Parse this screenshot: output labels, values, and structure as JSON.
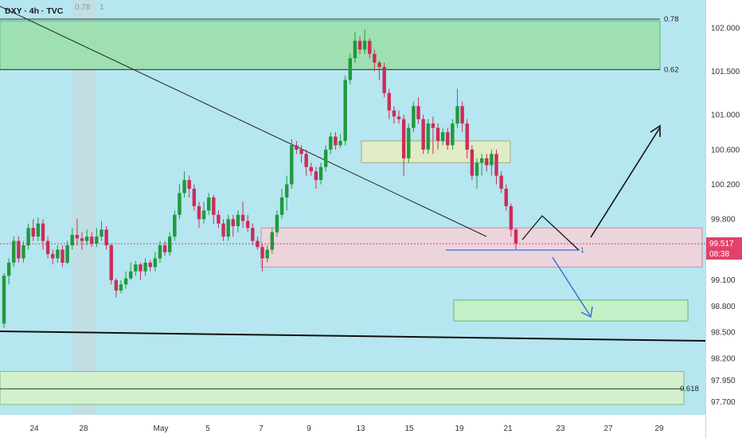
{
  "header": {
    "symbol_label": "DXY · 4h · TVC",
    "marker_value": "0.78",
    "marker_count": "1"
  },
  "price_badge": {
    "price": "99.517",
    "countdown": "08:38",
    "color": "#e0436a"
  },
  "colors": {
    "background": "#b6e6f0",
    "bull": "#1f9a3c",
    "bear": "#cc2c5a",
    "green_zone": "#9fe0b3",
    "pink_zone": "#f1d3db",
    "blue_arrow": "#2e6fd6"
  },
  "chart_data": {
    "type": "candlestick",
    "timeframe": "4h",
    "ylim": [
      97.55,
      102.32
    ],
    "y_ticks": [
      "102.000",
      "101.500",
      "101.000",
      "100.600",
      "100.200",
      "99.800",
      "99.100",
      "98.800",
      "98.500",
      "98.200",
      "97.950",
      "97.700"
    ],
    "x_tick_labels": [
      "24",
      "28",
      "May",
      "5",
      "7",
      "9",
      "13",
      "15",
      "19",
      "21",
      "23",
      "27",
      "29"
    ],
    "candles": [
      [
        98.6,
        99.15,
        99.18,
        98.55
      ],
      [
        99.15,
        99.3,
        99.35,
        99.05
      ],
      [
        99.3,
        99.55,
        99.6,
        99.25
      ],
      [
        99.55,
        99.35,
        99.6,
        99.3
      ],
      [
        99.35,
        99.5,
        99.55,
        99.3
      ],
      [
        99.5,
        99.7,
        99.75,
        99.45
      ],
      [
        99.7,
        99.6,
        99.8,
        99.55
      ],
      [
        99.6,
        99.75,
        99.82,
        99.55
      ],
      [
        99.75,
        99.55,
        99.8,
        99.45
      ],
      [
        99.55,
        99.4,
        99.6,
        99.35
      ],
      [
        99.4,
        99.35,
        99.45,
        99.28
      ],
      [
        99.35,
        99.45,
        99.5,
        99.3
      ],
      [
        99.45,
        99.3,
        99.5,
        99.25
      ],
      [
        99.3,
        99.5,
        99.55,
        99.28
      ],
      [
        99.5,
        99.62,
        99.7,
        99.45
      ],
      [
        99.62,
        99.58,
        99.8,
        99.5
      ],
      [
        99.58,
        99.55,
        99.65,
        99.45
      ],
      [
        99.55,
        99.6,
        99.68,
        99.5
      ],
      [
        99.6,
        99.52,
        99.65,
        99.48
      ],
      [
        99.52,
        99.6,
        99.7,
        99.48
      ],
      [
        99.6,
        99.68,
        99.78,
        99.55
      ],
      [
        99.68,
        99.5,
        99.72,
        99.45
      ],
      [
        99.5,
        99.1,
        99.52,
        99.05
      ],
      [
        99.1,
        98.98,
        99.12,
        98.9
      ],
      [
        98.98,
        99.05,
        99.1,
        98.95
      ],
      [
        99.05,
        99.12,
        99.2,
        99.0
      ],
      [
        99.12,
        99.2,
        99.3,
        99.1
      ],
      [
        99.2,
        99.28,
        99.32,
        99.15
      ],
      [
        99.28,
        99.2,
        99.3,
        99.1
      ],
      [
        99.2,
        99.3,
        99.35,
        99.15
      ],
      [
        99.3,
        99.25,
        99.33,
        99.2
      ],
      [
        99.25,
        99.35,
        99.42,
        99.2
      ],
      [
        99.35,
        99.5,
        99.55,
        99.3
      ],
      [
        99.5,
        99.42,
        99.55,
        99.38
      ],
      [
        99.42,
        99.6,
        99.65,
        99.38
      ],
      [
        99.6,
        99.85,
        99.9,
        99.55
      ],
      [
        99.85,
        100.1,
        100.2,
        99.8
      ],
      [
        100.1,
        100.25,
        100.35,
        100.05
      ],
      [
        100.25,
        100.15,
        100.3,
        100.05
      ],
      [
        100.15,
        99.95,
        100.2,
        99.9
      ],
      [
        99.95,
        99.8,
        100.0,
        99.7
      ],
      [
        99.8,
        99.9,
        100.0,
        99.75
      ],
      [
        99.9,
        100.05,
        100.1,
        99.85
      ],
      [
        100.05,
        99.85,
        100.08,
        99.75
      ],
      [
        99.85,
        99.75,
        99.9,
        99.7
      ],
      [
        99.75,
        99.6,
        99.8,
        99.55
      ],
      [
        99.6,
        99.8,
        99.85,
        99.55
      ],
      [
        99.8,
        99.72,
        99.85,
        99.6
      ],
      [
        99.72,
        99.85,
        99.9,
        99.65
      ],
      [
        99.85,
        99.78,
        100.0,
        99.7
      ],
      [
        99.78,
        99.7,
        99.85,
        99.65
      ],
      [
        99.7,
        99.55,
        99.75,
        99.5
      ],
      [
        99.55,
        99.48,
        99.6,
        99.45
      ],
      [
        99.48,
        99.35,
        99.52,
        99.2
      ],
      [
        99.35,
        99.45,
        99.5,
        99.3
      ],
      [
        99.45,
        99.65,
        99.7,
        99.4
      ],
      [
        99.65,
        99.85,
        99.9,
        99.6
      ],
      [
        99.85,
        100.05,
        100.15,
        99.8
      ],
      [
        100.05,
        100.2,
        100.3,
        99.9
      ],
      [
        100.2,
        100.65,
        100.72,
        100.15
      ],
      [
        100.65,
        100.6,
        100.7,
        100.55
      ],
      [
        100.6,
        100.55,
        100.65,
        100.45
      ],
      [
        100.55,
        100.4,
        100.6,
        100.3
      ],
      [
        100.4,
        100.35,
        100.45,
        100.3
      ],
      [
        100.35,
        100.25,
        100.4,
        100.15
      ],
      [
        100.25,
        100.4,
        100.45,
        100.2
      ],
      [
        100.4,
        100.6,
        100.65,
        100.35
      ],
      [
        100.6,
        100.75,
        100.8,
        100.55
      ],
      [
        100.75,
        100.65,
        100.8,
        100.6
      ],
      [
        100.65,
        100.7,
        100.78,
        100.62
      ],
      [
        100.7,
        101.4,
        101.45,
        100.65
      ],
      [
        101.4,
        101.65,
        101.7,
        101.35
      ],
      [
        101.65,
        101.85,
        101.95,
        101.6
      ],
      [
        101.85,
        101.75,
        101.9,
        101.7
      ],
      [
        101.75,
        101.85,
        101.98,
        101.7
      ],
      [
        101.85,
        101.7,
        101.88,
        101.65
      ],
      [
        101.7,
        101.6,
        101.75,
        101.5
      ],
      [
        101.6,
        101.55,
        101.62,
        101.4
      ],
      [
        101.55,
        101.25,
        101.6,
        101.2
      ],
      [
        101.25,
        101.05,
        101.3,
        100.95
      ],
      [
        101.05,
        100.98,
        101.1,
        100.9
      ],
      [
        100.98,
        100.95,
        101.05,
        100.9
      ],
      [
        100.95,
        100.5,
        101.0,
        100.3
      ],
      [
        100.5,
        100.85,
        100.9,
        100.45
      ],
      [
        100.85,
        101.1,
        101.15,
        100.8
      ],
      [
        101.1,
        100.95,
        101.2,
        100.9
      ],
      [
        100.95,
        100.6,
        101.0,
        100.55
      ],
      [
        100.6,
        100.9,
        100.95,
        100.55
      ],
      [
        100.9,
        100.85,
        100.98,
        100.55
      ],
      [
        100.85,
        100.7,
        100.9,
        100.6
      ],
      [
        100.7,
        100.8,
        100.85,
        100.65
      ],
      [
        100.8,
        100.65,
        100.85,
        100.6
      ],
      [
        100.65,
        100.9,
        100.95,
        100.6
      ],
      [
        100.9,
        101.1,
        101.3,
        100.85
      ],
      [
        101.1,
        100.9,
        101.15,
        100.8
      ],
      [
        100.9,
        100.6,
        100.95,
        100.5
      ],
      [
        100.6,
        100.3,
        100.65,
        100.25
      ],
      [
        100.3,
        100.45,
        100.5,
        100.15
      ],
      [
        100.45,
        100.5,
        100.55,
        100.3
      ],
      [
        100.5,
        100.42,
        100.55,
        100.35
      ],
      [
        100.42,
        100.55,
        100.6,
        100.3
      ],
      [
        100.55,
        100.3,
        100.6,
        100.2
      ],
      [
        100.3,
        100.15,
        100.35,
        100.1
      ],
      [
        100.15,
        99.95,
        100.2,
        99.9
      ],
      [
        99.95,
        99.68,
        99.98,
        99.6
      ],
      [
        99.68,
        99.52,
        99.7,
        99.45
      ]
    ],
    "levels": [
      {
        "label": "0.78",
        "price": 102.1
      },
      {
        "label": "0.62",
        "price": 101.52
      },
      {
        "label": "0.618",
        "price": 97.85
      }
    ],
    "current_price": 99.517
  }
}
